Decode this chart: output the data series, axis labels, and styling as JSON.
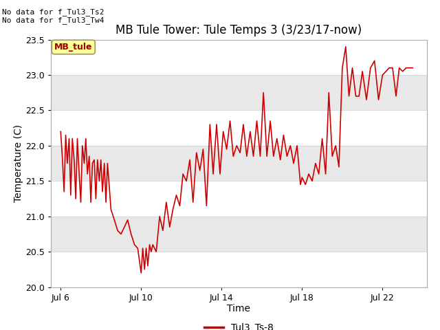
{
  "title": "MB Tule Tower: Tule Temps 3 (3/23/17-now)",
  "xlabel": "Time",
  "ylabel": "Temperature (C)",
  "ylim": [
    20.0,
    23.5
  ],
  "yticks": [
    20.0,
    20.5,
    21.0,
    21.5,
    22.0,
    22.5,
    23.0,
    23.5
  ],
  "xtick_labels": [
    "Jul 6",
    "Jul 10",
    "Jul 14",
    "Jul 18",
    "Jul 22"
  ],
  "xtick_positions": [
    6,
    10,
    14,
    18,
    22
  ],
  "no_data_text": [
    "No data for f_Tul3_Ts2",
    "No data for f_Tul3_Tw4"
  ],
  "legend_label": "Tul3_Ts-8",
  "legend_box_label": "MB_tule",
  "line_color": "#cc0000",
  "bg_color": "#ffffff",
  "plot_bg_color": "#e8e8e8",
  "stripe_color": "#ffffff",
  "legend_box_color": "#ffff99",
  "legend_box_edge": "#999966",
  "title_fontsize": 12,
  "axis_fontsize": 10,
  "tick_fontsize": 9,
  "xlim": [
    5.5,
    24.2
  ],
  "x_data": [
    6.0,
    6.08,
    6.17,
    6.25,
    6.33,
    6.42,
    6.5,
    6.58,
    6.67,
    6.75,
    6.83,
    6.92,
    7.0,
    7.08,
    7.17,
    7.25,
    7.33,
    7.42,
    7.5,
    7.58,
    7.67,
    7.75,
    7.83,
    7.92,
    8.0,
    8.08,
    8.17,
    8.25,
    8.33,
    8.5,
    8.67,
    8.83,
    9.0,
    9.17,
    9.33,
    9.5,
    9.67,
    9.83,
    10.0,
    10.08,
    10.17,
    10.25,
    10.33,
    10.42,
    10.5,
    10.58,
    10.75,
    10.92,
    11.08,
    11.25,
    11.42,
    11.58,
    11.75,
    11.92,
    12.08,
    12.25,
    12.42,
    12.58,
    12.75,
    12.92,
    13.08,
    13.25,
    13.42,
    13.58,
    13.75,
    13.92,
    14.08,
    14.25,
    14.42,
    14.58,
    14.75,
    14.92,
    15.08,
    15.25,
    15.42,
    15.58,
    15.75,
    15.92,
    16.08,
    16.25,
    16.42,
    16.58,
    16.75,
    16.92,
    17.08,
    17.25,
    17.42,
    17.58,
    17.75,
    17.92,
    18.0,
    18.17,
    18.33,
    18.5,
    18.67,
    18.83,
    19.0,
    19.17,
    19.33,
    19.5,
    19.67,
    19.83,
    20.0,
    20.17,
    20.33,
    20.5,
    20.67,
    20.83,
    21.0,
    21.2,
    21.4,
    21.6,
    21.8,
    22.0,
    22.17,
    22.33,
    22.5,
    22.67,
    22.83,
    23.0,
    23.17,
    23.33,
    23.5
  ],
  "y_data": [
    22.2,
    21.85,
    21.35,
    22.15,
    21.75,
    22.1,
    21.3,
    22.1,
    21.8,
    21.25,
    22.1,
    21.6,
    21.2,
    22.0,
    21.75,
    22.1,
    21.6,
    21.85,
    21.2,
    21.75,
    21.8,
    21.25,
    21.8,
    21.5,
    21.8,
    21.35,
    21.75,
    21.2,
    21.75,
    21.1,
    20.95,
    20.8,
    20.75,
    20.85,
    20.95,
    20.75,
    20.6,
    20.55,
    20.2,
    20.55,
    20.25,
    20.55,
    20.3,
    20.6,
    20.5,
    20.6,
    20.5,
    21.0,
    20.8,
    21.2,
    20.85,
    21.1,
    21.3,
    21.15,
    21.6,
    21.5,
    21.8,
    21.2,
    21.9,
    21.65,
    21.95,
    21.15,
    22.3,
    21.6,
    22.3,
    21.6,
    22.2,
    21.95,
    22.35,
    21.85,
    22.0,
    21.9,
    22.3,
    21.85,
    22.2,
    21.85,
    22.35,
    21.85,
    22.75,
    21.85,
    22.35,
    21.85,
    22.1,
    21.8,
    22.15,
    21.85,
    22.0,
    21.75,
    22.0,
    21.45,
    21.55,
    21.45,
    21.6,
    21.5,
    21.75,
    21.6,
    22.1,
    21.6,
    22.75,
    21.85,
    22.0,
    21.7,
    23.1,
    23.4,
    22.7,
    23.1,
    22.7,
    22.7,
    23.05,
    22.65,
    23.1,
    23.2,
    22.65,
    23.0,
    23.05,
    23.1,
    23.1,
    22.7,
    23.1,
    23.05,
    23.1,
    23.1,
    23.1
  ]
}
